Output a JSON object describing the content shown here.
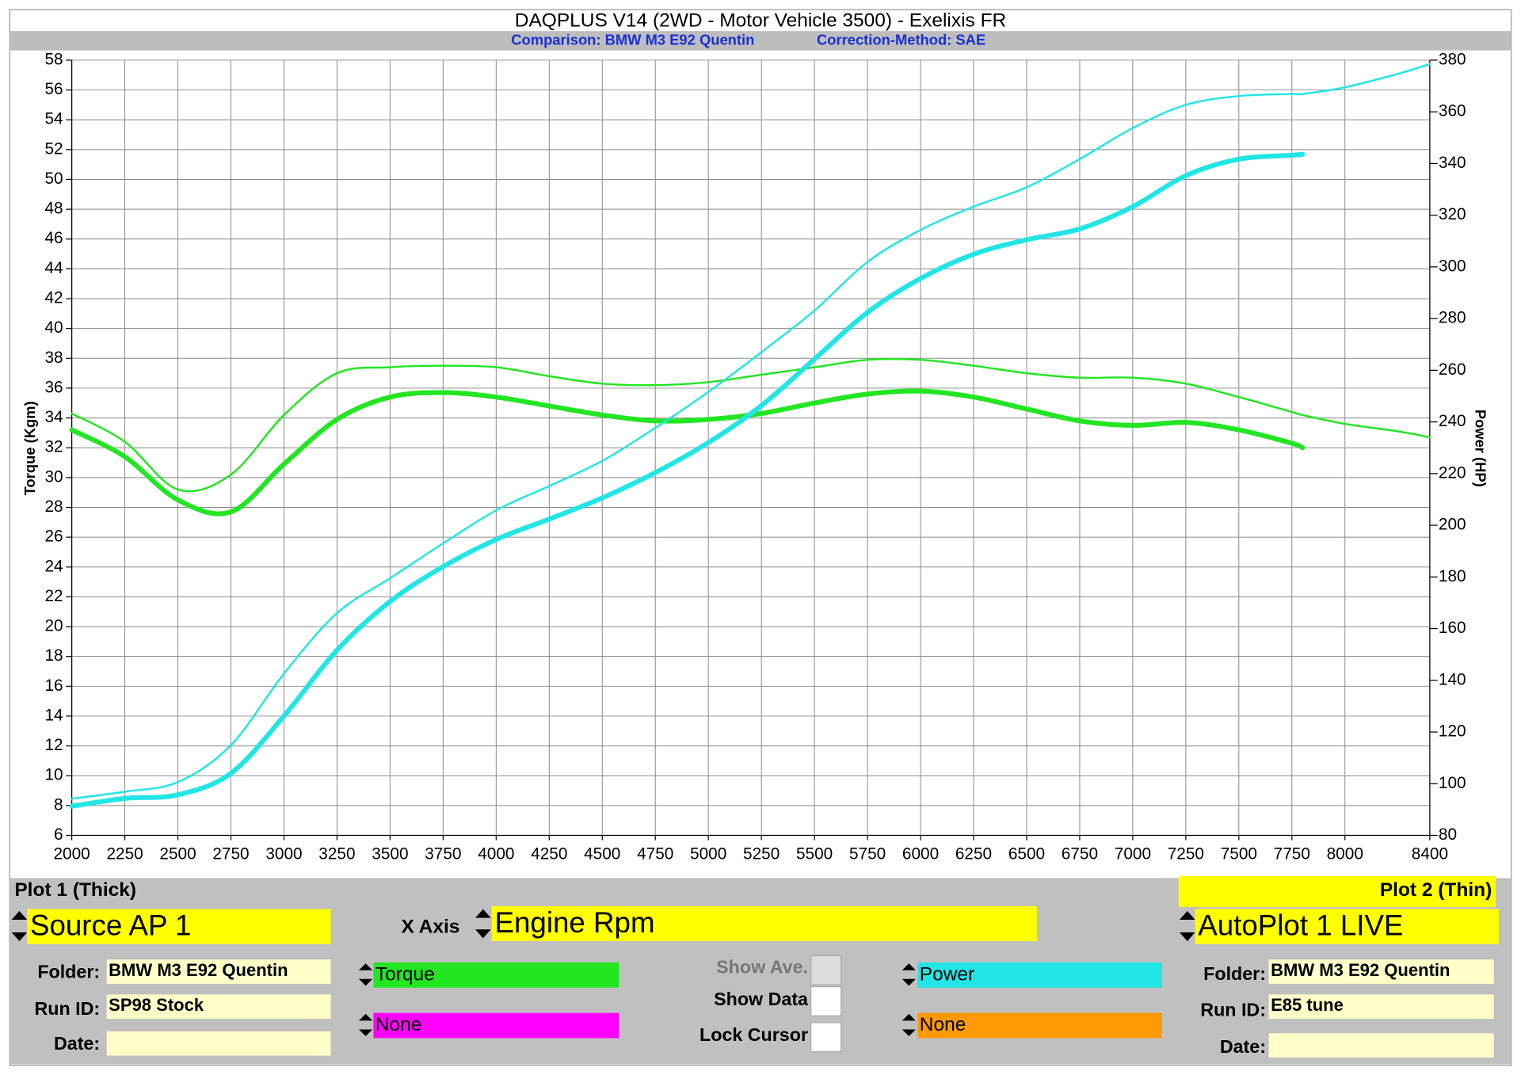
{
  "header": {
    "title": "DAQPLUS V14 (2WD - Motor Vehicle 3500) - Exelixis FR",
    "comparison": "Comparison: BMW M3 E92 Quentin",
    "correction": "Correction-Method: SAE"
  },
  "chart_data": {
    "type": "line",
    "x_label": null,
    "y_label": "Torque (Kgm)",
    "y2_label": "Power (HP)",
    "x": [
      2000,
      2250,
      2500,
      2750,
      3000,
      3250,
      3500,
      3750,
      4000,
      4250,
      4500,
      4750,
      5000,
      5250,
      5500,
      5750,
      6000,
      6250,
      6500,
      6750,
      7000,
      7250,
      7500,
      7750,
      7800,
      8000,
      8250,
      8400
    ],
    "series": [
      {
        "color": "#22e622",
        "style": "thick",
        "axis": "y",
        "values": [
          33.2,
          31.4,
          28.5,
          27.7,
          30.9,
          33.9,
          35.4,
          35.7,
          35.4,
          34.8,
          34.2,
          33.8,
          33.9,
          34.3,
          35.0,
          35.6,
          35.8,
          35.4,
          34.6,
          33.8,
          33.5,
          33.7,
          33.2,
          32.3,
          32.0,
          null,
          null,
          null
        ]
      },
      {
        "color": "#22e622",
        "style": "thin",
        "axis": "y",
        "values": [
          34.3,
          32.4,
          29.2,
          30.2,
          34.2,
          37.0,
          37.4,
          37.5,
          37.4,
          36.8,
          36.3,
          36.2,
          36.4,
          36.9,
          37.4,
          37.9,
          37.9,
          37.5,
          37.0,
          36.7,
          36.7,
          36.3,
          35.4,
          34.4,
          34.2,
          33.6,
          33.1,
          32.7
        ]
      },
      {
        "color": "#22e5e5",
        "style": "thick",
        "axis": "y2",
        "values": [
          91.3,
          94.3,
          95.7,
          104,
          126.2,
          151.7,
          170.5,
          184,
          194.5,
          202.4,
          210.6,
          220.4,
          232,
          246.3,
          264.3,
          282.4,
          295.5,
          304.9,
          310.5,
          314.7,
          323.3,
          335.3,
          341.7,
          343.2,
          343.6,
          null,
          null,
          null
        ]
      },
      {
        "color": "#22e5e5",
        "style": "thin",
        "axis": "y2",
        "values": [
          94.2,
          96.9,
          100.6,
          114.9,
          142.6,
          166,
          179.5,
          193,
          205.8,
          215.2,
          224.9,
          237.7,
          251.6,
          267,
          283.1,
          301.9,
          314.3,
          323.3,
          330.8,
          341.7,
          353.7,
          362.7,
          366.1,
          366.9,
          366.9,
          369.5,
          374.7,
          378.5
        ]
      }
    ],
    "xlim": [
      2000,
      8400
    ],
    "xticks": [
      2000,
      2250,
      2500,
      2750,
      3000,
      3250,
      3500,
      3750,
      4000,
      4250,
      4500,
      4750,
      5000,
      5250,
      5500,
      5750,
      6000,
      6250,
      6500,
      6750,
      7000,
      7250,
      7500,
      7750,
      8000,
      8400
    ],
    "ylim": [
      6,
      58
    ],
    "yticks": [
      6,
      8,
      10,
      12,
      14,
      16,
      18,
      20,
      22,
      24,
      26,
      28,
      30,
      32,
      34,
      36,
      38,
      40,
      42,
      44,
      46,
      48,
      50,
      52,
      54,
      56,
      58
    ],
    "y2lim": [
      80,
      380
    ],
    "y2ticks": [
      80,
      100,
      120,
      140,
      160,
      180,
      200,
      220,
      240,
      260,
      280,
      300,
      320,
      340,
      360,
      380
    ],
    "grid": true
  },
  "panel": {
    "plot1": {
      "title": "Plot 1 (Thick)",
      "source": "Source AP 1",
      "folder_label": "Folder:",
      "folder": "BMW M3 E92 Quentin",
      "run_label": "Run ID:",
      "run": "SP98 Stock",
      "date_label": "Date:"
    },
    "x_axis": {
      "label": "X Axis",
      "value": "Engine Rpm"
    },
    "channels": {
      "plot1_a": "Torque",
      "plot1_b": "None",
      "plot2_a": "Power",
      "plot2_b": "None"
    },
    "options": {
      "show_ave": "Show Ave.",
      "show_data": "Show Data",
      "lock_cursor": "Lock Cursor"
    },
    "plot2": {
      "title": "Plot 2 (Thin)",
      "source": "AutoPlot 1 LIVE",
      "folder_label": "Folder:",
      "folder": "BMW M3 E92 Quentin",
      "run_label": "Run ID:",
      "run": "E85 tune",
      "date_label": "Date:"
    }
  }
}
